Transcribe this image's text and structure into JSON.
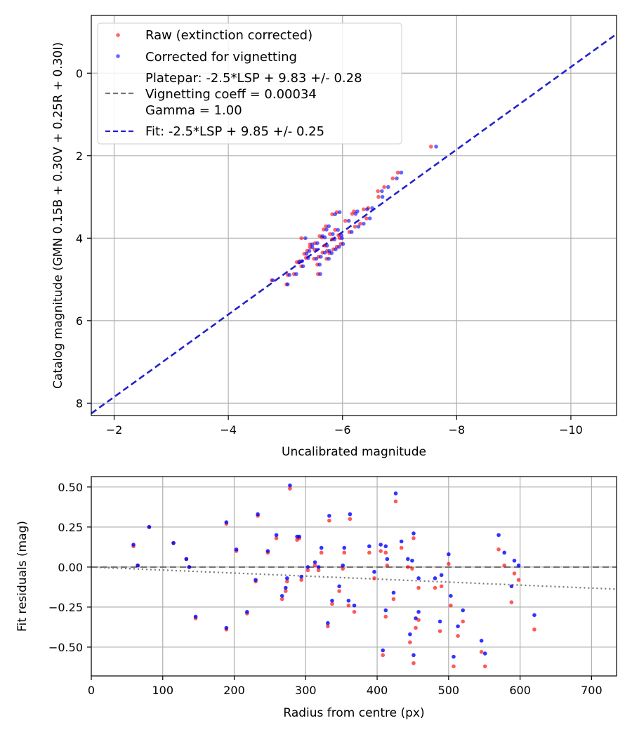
{
  "colors": {
    "raw": "#ff0000",
    "corrected": "#0000ff",
    "fit": "#2222cc",
    "vignetting": "#777777"
  },
  "chart_data": [
    {
      "type": "scatter",
      "x_inverted": true,
      "y_inverted": true,
      "xlabel": "Uncalibrated magnitude",
      "ylabel": "Catalog magnitude (GMN 0.15B + 0.30V + 0.25R + 0.30I)",
      "xlim": [
        -1.6,
        -10.8
      ],
      "ylim": [
        8.3,
        -1.4
      ],
      "xticks": [
        -2,
        -4,
        -6,
        -8,
        -10
      ],
      "xtick_labels": [
        "−2",
        "−4",
        "−6",
        "−8",
        "−10"
      ],
      "yticks": [
        0,
        2,
        4,
        6,
        8
      ],
      "ytick_labels": [
        "0",
        "2",
        "4",
        "6",
        "8"
      ],
      "grid": true,
      "legend_position": "top-left",
      "legend": [
        {
          "kind": "marker",
          "color_key": "raw",
          "label": "Raw (extinction corrected)"
        },
        {
          "kind": "marker",
          "color_key": "corrected",
          "label": "Corrected for vignetting"
        },
        {
          "kind": "dash",
          "color_key": "vignetting",
          "label": "Platepar: -2.5*LSP + 9.83 +/- 0.28\nVignetting coeff = 0.00034\nGamma = 1.00"
        },
        {
          "kind": "dash",
          "color_key": "fit",
          "label": "Fit: -2.5*LSP + 9.85 +/- 0.25"
        }
      ],
      "fit_line": {
        "slope": 1,
        "intercept": 9.85,
        "label": "Fit: -2.5*LSP + 9.85 +/- 0.25"
      },
      "series": [
        {
          "name": "Raw (extinction corrected)",
          "color_key": "raw",
          "points": [
            [
              -7.55,
              1.78
            ],
            [
              -6.97,
              2.41
            ],
            [
              -6.88,
              2.55
            ],
            [
              -6.73,
              2.76
            ],
            [
              -6.62,
              2.86
            ],
            [
              -6.63,
              3.0
            ],
            [
              -6.45,
              3.27
            ],
            [
              -6.37,
              3.3
            ],
            [
              -6.42,
              3.52
            ],
            [
              -6.31,
              3.65
            ],
            [
              -6.22,
              3.72
            ],
            [
              -6.2,
              3.35
            ],
            [
              -6.17,
              3.41
            ],
            [
              -6.05,
              3.58
            ],
            [
              -5.9,
              3.37
            ],
            [
              -5.82,
              3.42
            ],
            [
              -5.87,
              3.8
            ],
            [
              -5.93,
              3.93
            ],
            [
              -5.78,
              3.9
            ],
            [
              -5.71,
              3.71
            ],
            [
              -5.67,
              3.79
            ],
            [
              -5.64,
              3.98
            ],
            [
              -5.6,
              3.95
            ],
            [
              -5.52,
              4.12
            ],
            [
              -5.51,
              4.28
            ],
            [
              -5.43,
              4.22
            ],
            [
              -5.38,
              4.31
            ],
            [
              -5.33,
              4.38
            ],
            [
              -5.25,
              4.56
            ],
            [
              -5.2,
              4.58
            ],
            [
              -5.15,
              4.87
            ],
            [
              -5.28,
              4.0
            ],
            [
              -5.69,
              4.18
            ],
            [
              -5.73,
              4.31
            ],
            [
              -5.58,
              4.45
            ],
            [
              -5.56,
              4.64
            ],
            [
              -5.5,
              4.5
            ],
            [
              -5.36,
              4.48
            ],
            [
              -5.57,
              4.87
            ],
            [
              -5.84,
              4.27
            ],
            [
              -5.9,
              4.21
            ],
            [
              -5.97,
              4.14
            ],
            [
              -5.95,
              4.0
            ],
            [
              -6.12,
              3.85
            ],
            [
              -5.72,
              4.5
            ],
            [
              -5.43,
              4.15
            ],
            [
              -5.65,
              4.35
            ],
            [
              -5.28,
              4.68
            ],
            [
              -5.04,
              4.89
            ],
            [
              -5.02,
              5.12
            ],
            [
              -4.76,
              5.02
            ],
            [
              -5.82,
              4.03
            ],
            [
              -5.77,
              4.36
            ]
          ]
        },
        {
          "name": "Corrected for vignetting",
          "color_key": "corrected",
          "points": [
            [
              -7.64,
              1.78
            ],
            [
              -7.03,
              2.41
            ],
            [
              -6.95,
              2.55
            ],
            [
              -6.8,
              2.76
            ],
            [
              -6.69,
              2.86
            ],
            [
              -6.7,
              3.0
            ],
            [
              -6.52,
              3.27
            ],
            [
              -6.43,
              3.3
            ],
            [
              -6.48,
              3.52
            ],
            [
              -6.37,
              3.65
            ],
            [
              -6.28,
              3.72
            ],
            [
              -6.26,
              3.35
            ],
            [
              -6.23,
              3.41
            ],
            [
              -6.11,
              3.58
            ],
            [
              -5.95,
              3.37
            ],
            [
              -5.87,
              3.42
            ],
            [
              -5.92,
              3.8
            ],
            [
              -5.98,
              3.93
            ],
            [
              -5.83,
              3.9
            ],
            [
              -5.76,
              3.71
            ],
            [
              -5.72,
              3.79
            ],
            [
              -5.69,
              3.98
            ],
            [
              -5.65,
              3.95
            ],
            [
              -5.56,
              4.12
            ],
            [
              -5.55,
              4.28
            ],
            [
              -5.47,
              4.22
            ],
            [
              -5.42,
              4.31
            ],
            [
              -5.37,
              4.38
            ],
            [
              -5.29,
              4.56
            ],
            [
              -5.24,
              4.58
            ],
            [
              -5.19,
              4.87
            ],
            [
              -5.35,
              4.0
            ],
            [
              -5.73,
              4.18
            ],
            [
              -5.77,
              4.31
            ],
            [
              -5.62,
              4.45
            ],
            [
              -5.6,
              4.64
            ],
            [
              -5.54,
              4.5
            ],
            [
              -5.4,
              4.48
            ],
            [
              -5.61,
              4.87
            ],
            [
              -5.88,
              4.27
            ],
            [
              -5.94,
              4.21
            ],
            [
              -6.01,
              4.14
            ],
            [
              -5.99,
              4.0
            ],
            [
              -6.16,
              3.85
            ],
            [
              -5.76,
              4.5
            ],
            [
              -5.47,
              4.15
            ],
            [
              -5.69,
              4.35
            ],
            [
              -5.31,
              4.68
            ],
            [
              -5.07,
              4.89
            ],
            [
              -5.04,
              5.12
            ],
            [
              -4.78,
              5.02
            ],
            [
              -5.86,
              4.03
            ],
            [
              -5.81,
              4.36
            ]
          ]
        }
      ]
    },
    {
      "type": "scatter",
      "xlabel": "Radius from centre (px)",
      "ylabel": "Fit residuals (mag)",
      "xlim": [
        0,
        735
      ],
      "ylim": [
        -0.68,
        0.565
      ],
      "xticks": [
        0,
        100,
        200,
        300,
        400,
        500,
        600,
        700
      ],
      "xtick_labels": [
        "0",
        "100",
        "200",
        "300",
        "400",
        "500",
        "600",
        "700"
      ],
      "yticks": [
        0.5,
        0.25,
        0.0,
        -0.25,
        -0.5
      ],
      "ytick_labels": [
        "0.50",
        "0.25",
        "0.00",
        "−0.25",
        "−0.50"
      ],
      "grid": true,
      "zero_line": {
        "y": 0,
        "style": "dashed",
        "color_key": "vignetting"
      },
      "vignetting_curve": {
        "points": [
          [
            0,
            0.0
          ],
          [
            735,
            -0.138
          ]
        ],
        "style": "dotted",
        "color_key": "vignetting"
      },
      "series": [
        {
          "name": "Raw (extinction corrected)",
          "color_key": "raw",
          "points": [
            [
              59,
              0.13
            ],
            [
              65,
              0.01
            ],
            [
              81,
              0.25
            ],
            [
              115,
              0.15
            ],
            [
              133,
              0.05
            ],
            [
              137,
              0.0
            ],
            [
              146,
              -0.32
            ],
            [
              189,
              -0.39
            ],
            [
              189,
              0.27
            ],
            [
              203,
              0.1
            ],
            [
              218,
              -0.29
            ],
            [
              230,
              -0.09
            ],
            [
              233,
              0.32
            ],
            [
              247,
              0.09
            ],
            [
              259,
              0.18
            ],
            [
              267,
              -0.2
            ],
            [
              272,
              -0.15
            ],
            [
              274,
              -0.09
            ],
            [
              278,
              0.49
            ],
            [
              288,
              0.17
            ],
            [
              291,
              0.18
            ],
            [
              294,
              -0.08
            ],
            [
              303,
              -0.02
            ],
            [
              313,
              0.01
            ],
            [
              318,
              -0.02
            ],
            [
              322,
              0.09
            ],
            [
              331,
              -0.37
            ],
            [
              333,
              0.29
            ],
            [
              337,
              -0.23
            ],
            [
              347,
              -0.15
            ],
            [
              352,
              -0.01
            ],
            [
              354,
              0.09
            ],
            [
              360,
              -0.24
            ],
            [
              362,
              0.3
            ],
            [
              368,
              -0.28
            ],
            [
              389,
              0.09
            ],
            [
              396,
              -0.07
            ],
            [
              405,
              0.1
            ],
            [
              408,
              -0.55
            ],
            [
              412,
              -0.31
            ],
            [
              412,
              0.09
            ],
            [
              414,
              0.01
            ],
            [
              423,
              -0.2
            ],
            [
              426,
              0.41
            ],
            [
              434,
              0.12
            ],
            [
              443,
              0.0
            ],
            [
              446,
              -0.47
            ],
            [
              449,
              -0.01
            ],
            [
              451,
              0.18
            ],
            [
              451,
              -0.6
            ],
            [
              454,
              -0.38
            ],
            [
              458,
              -0.13
            ],
            [
              458,
              -0.33
            ],
            [
              481,
              -0.13
            ],
            [
              488,
              -0.4
            ],
            [
              490,
              -0.12
            ],
            [
              500,
              0.02
            ],
            [
              503,
              -0.24
            ],
            [
              507,
              -0.62
            ],
            [
              513,
              -0.43
            ],
            [
              520,
              -0.34
            ],
            [
              546,
              -0.53
            ],
            [
              551,
              -0.62
            ],
            [
              570,
              0.11
            ],
            [
              578,
              0.01
            ],
            [
              588,
              -0.22
            ],
            [
              592,
              -0.04
            ],
            [
              598,
              -0.08
            ],
            [
              620,
              -0.39
            ]
          ]
        },
        {
          "name": "Corrected for vignetting",
          "color_key": "corrected",
          "points": [
            [
              59,
              0.14
            ],
            [
              65,
              0.01
            ],
            [
              81,
              0.25
            ],
            [
              115,
              0.15
            ],
            [
              133,
              0.05
            ],
            [
              137,
              0.0
            ],
            [
              146,
              -0.31
            ],
            [
              189,
              -0.38
            ],
            [
              189,
              0.28
            ],
            [
              203,
              0.11
            ],
            [
              218,
              -0.28
            ],
            [
              230,
              -0.08
            ],
            [
              233,
              0.33
            ],
            [
              247,
              0.1
            ],
            [
              259,
              0.2
            ],
            [
              267,
              -0.18
            ],
            [
              272,
              -0.13
            ],
            [
              274,
              -0.07
            ],
            [
              278,
              0.51
            ],
            [
              288,
              0.19
            ],
            [
              291,
              0.19
            ],
            [
              294,
              -0.06
            ],
            [
              303,
              0.0
            ],
            [
              313,
              0.03
            ],
            [
              318,
              0.0
            ],
            [
              322,
              0.12
            ],
            [
              331,
              -0.35
            ],
            [
              333,
              0.32
            ],
            [
              337,
              -0.21
            ],
            [
              347,
              -0.12
            ],
            [
              352,
              0.01
            ],
            [
              354,
              0.12
            ],
            [
              360,
              -0.21
            ],
            [
              362,
              0.33
            ],
            [
              368,
              -0.24
            ],
            [
              389,
              0.13
            ],
            [
              396,
              -0.03
            ],
            [
              405,
              0.14
            ],
            [
              408,
              -0.52
            ],
            [
              412,
              -0.27
            ],
            [
              412,
              0.13
            ],
            [
              414,
              0.05
            ],
            [
              423,
              -0.16
            ],
            [
              426,
              0.46
            ],
            [
              434,
              0.16
            ],
            [
              443,
              0.05
            ],
            [
              446,
              -0.42
            ],
            [
              449,
              0.04
            ],
            [
              451,
              0.21
            ],
            [
              451,
              -0.55
            ],
            [
              454,
              -0.32
            ],
            [
              458,
              -0.07
            ],
            [
              458,
              -0.28
            ],
            [
              481,
              -0.07
            ],
            [
              488,
              -0.34
            ],
            [
              490,
              -0.05
            ],
            [
              500,
              0.08
            ],
            [
              503,
              -0.18
            ],
            [
              507,
              -0.56
            ],
            [
              513,
              -0.37
            ],
            [
              520,
              -0.27
            ],
            [
              546,
              -0.46
            ],
            [
              551,
              -0.54
            ],
            [
              570,
              0.2
            ],
            [
              578,
              0.09
            ],
            [
              588,
              -0.12
            ],
            [
              592,
              0.04
            ],
            [
              598,
              0.01
            ],
            [
              620,
              -0.3
            ]
          ]
        }
      ]
    }
  ]
}
